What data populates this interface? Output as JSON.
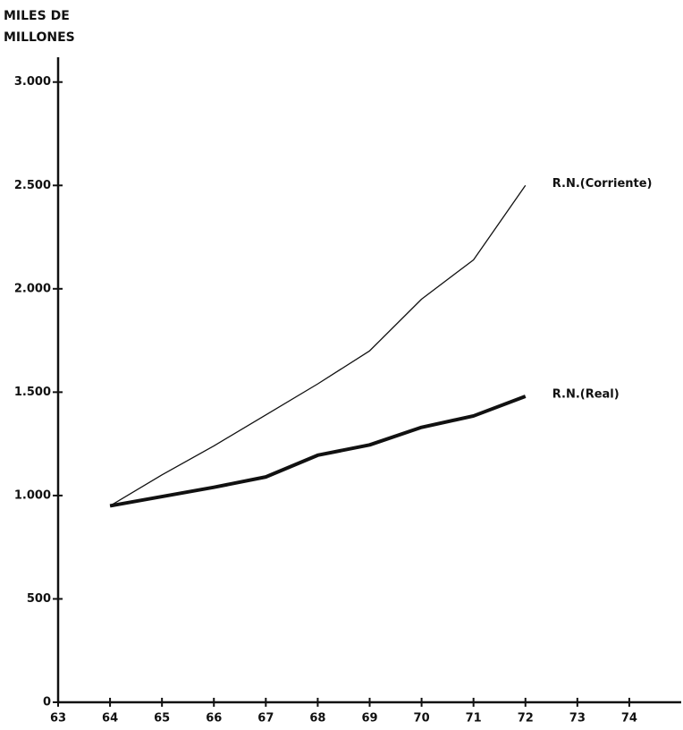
{
  "chart_data": {
    "type": "line",
    "ylabel": "MILES DE MILLONES",
    "x": [
      64,
      65,
      66,
      67,
      68,
      69,
      70,
      71,
      72
    ],
    "series": [
      {
        "name": "R.N.(Corriente)",
        "color": "#111111",
        "line_width": 1.3,
        "values": [
          950,
          1100,
          1240,
          1390,
          1540,
          1700,
          1950,
          2140,
          2500
        ]
      },
      {
        "name": "R.N.(Real)",
        "color": "#111111",
        "line_width": 4,
        "values": [
          950,
          995,
          1040,
          1090,
          1195,
          1245,
          1330,
          1385,
          1480
        ]
      }
    ],
    "xlim": [
      63,
      75
    ],
    "xticks": [
      63,
      64,
      65,
      66,
      67,
      68,
      69,
      70,
      71,
      72,
      73,
      74
    ],
    "ylim": [
      0,
      3120
    ],
    "yticks": [
      0,
      500,
      {
        "value": 1000,
        "label": "1.000"
      },
      {
        "value": 1500,
        "label": "1.500"
      },
      {
        "value": 2000,
        "label": "2.000"
      },
      {
        "value": 2500,
        "label": "2.500"
      },
      {
        "value": 3000,
        "label": "3.000"
      }
    ],
    "grid": false
  }
}
